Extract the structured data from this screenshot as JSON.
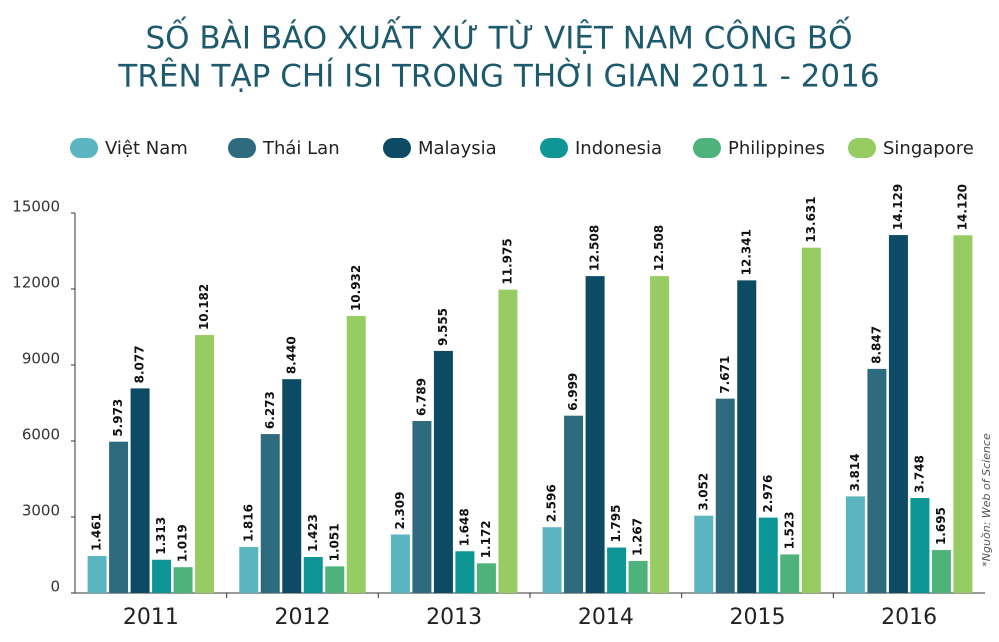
{
  "chart_data": {
    "type": "bar",
    "title": [
      "SỐ BÀI BÁO XUẤT XỨ TỪ VIỆT NAM CÔNG BỐ",
      "TRÊN TẠP CHÍ ISI TRONG THỜI GIAN 2011 - 2016"
    ],
    "source": "*Nguồn: Web of Science",
    "categories": [
      "2011",
      "2012",
      "2013",
      "2014",
      "2015",
      "2016"
    ],
    "series": [
      {
        "name": "Việt Nam",
        "color": "#5bb5c0",
        "values": [
          1461,
          1816,
          2309,
          2596,
          3052,
          3814
        ],
        "value_labels": [
          "1.461",
          "1.816",
          "2.309",
          "2.596",
          "3.052",
          "3.814"
        ]
      },
      {
        "name": "Thái Lan",
        "color": "#2e6b7e",
        "values": [
          5973,
          6273,
          6789,
          6999,
          7671,
          8847
        ],
        "value_labels": [
          "5.973",
          "6.273",
          "6.789",
          "6.999",
          "7.671",
          "8.847"
        ]
      },
      {
        "name": "Malaysia",
        "color": "#0d4a63",
        "values": [
          8077,
          8440,
          9555,
          12508,
          12341,
          14129
        ],
        "value_labels": [
          "8.077",
          "8.440",
          "9.555",
          "12.508",
          "12.341",
          "14.129"
        ]
      },
      {
        "name": "Indonesia",
        "color": "#0e9696",
        "values": [
          1313,
          1423,
          1648,
          1795,
          2976,
          3748
        ],
        "value_labels": [
          "1.313",
          "1.423",
          "1.648",
          "1.795",
          "2.976",
          "3.748"
        ]
      },
      {
        "name": "Philippines",
        "color": "#4db37a",
        "values": [
          1019,
          1051,
          1172,
          1267,
          1523,
          1695
        ],
        "value_labels": [
          "1.019",
          "1.051",
          "1.172",
          "1.267",
          "1.523",
          "1.695"
        ]
      },
      {
        "name": "Singapore",
        "color": "#96cc62",
        "values": [
          10182,
          10932,
          11975,
          12508,
          13631,
          14120
        ],
        "value_labels": [
          "10.182",
          "10.932",
          "11.975",
          "12.508",
          "13.631",
          "14.120"
        ]
      }
    ],
    "ylim": [
      0,
      15000
    ],
    "yticks": [
      0,
      3000,
      6000,
      9000,
      12000,
      15000
    ],
    "grid": false,
    "legend": "top"
  }
}
